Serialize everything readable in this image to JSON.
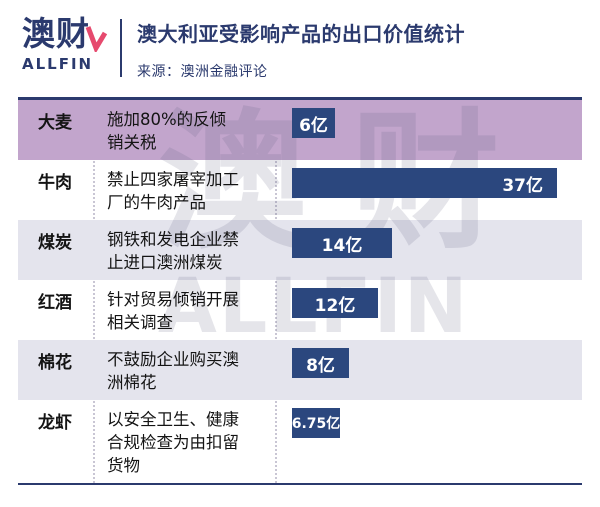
{
  "brand": {
    "logo_cn": "澳财",
    "logo_en": "ALLFIN"
  },
  "header": {
    "title": "澳大利亚受影响产品的出口价值统计",
    "source": "来源：澳洲金融评论"
  },
  "watermark": {
    "cn": "澳财",
    "en": "ALLFIN"
  },
  "colors": {
    "navy": "#2b3a6e",
    "bar": "#2b477e",
    "purple_row": "#c2a5cc",
    "shaded_row": "#e4e4ed",
    "accent_pink": "#e64a6e"
  },
  "chart_data": {
    "type": "bar",
    "title": "澳大利亚受影响产品的出口价值统计",
    "source": "澳洲金融评论",
    "unit": "亿",
    "xlim": [
      0,
      40
    ],
    "orientation": "horizontal",
    "highlight_row": 0,
    "categories": [
      "大麦",
      "牛肉",
      "煤炭",
      "红酒",
      "棉花",
      "龙虾"
    ],
    "measures": [
      "施加80%的反倾销关税",
      "禁止四家屠宰加工厂的牛肉产品",
      "钢铁和发电企业禁止进口澳洲煤炭",
      "针对贸易倾销开展相关调查",
      "不鼓励企业购买澳洲棉花",
      "以安全卫生、健康合规检查为由扣留货物"
    ],
    "values": [
      6,
      37,
      14,
      12,
      8,
      6.75
    ],
    "bar_labels": [
      "6亿",
      "37亿",
      "14亿",
      "12亿",
      "8亿",
      "6.75亿"
    ]
  }
}
